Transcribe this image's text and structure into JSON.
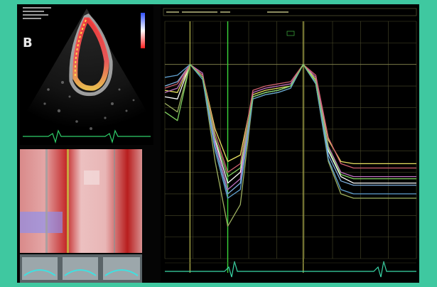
{
  "echo_panel": {
    "label": "B"
  },
  "chart_data": {
    "type": "line",
    "description_visible_axes": false,
    "gridlines": "on",
    "series_count": 8,
    "series_colors": [
      "#ffffff",
      "#e8e060",
      "#9db060",
      "#7fb0e0",
      "#c070c0",
      "#d06070",
      "#60a0d0",
      "#80d060"
    ],
    "x": [
      0,
      1,
      2,
      3,
      4,
      5,
      6,
      7,
      8,
      9,
      10,
      11,
      12,
      13,
      14,
      15,
      16,
      17,
      18,
      19,
      20
    ],
    "series": [
      {
        "values": [
          -1.5,
          -1.6,
          0,
          -0.5,
          -3.5,
          -5.5,
          -5.0,
          -1.5,
          -1.3,
          -1.2,
          -1.0,
          0,
          -0.8,
          -4.0,
          -5.2,
          -5.5,
          -5.5,
          -5.5,
          -5.5,
          -5.5,
          -5.5
        ]
      },
      {
        "values": [
          -1.2,
          -1.3,
          0,
          -0.5,
          -3.0,
          -4.5,
          -4.2,
          -1.4,
          -1.2,
          -1.1,
          -1.0,
          0,
          -0.7,
          -3.5,
          -4.5,
          -4.6,
          -4.6,
          -4.6,
          -4.6,
          -4.6,
          -4.6
        ]
      },
      {
        "values": [
          -1.8,
          -2.2,
          0,
          -0.6,
          -4.5,
          -7.5,
          -6.5,
          -1.6,
          -1.4,
          -1.3,
          -1.1,
          0,
          -0.9,
          -4.5,
          -6.0,
          -6.2,
          -6.2,
          -6.2,
          -6.2,
          -6.2,
          -6.2
        ]
      },
      {
        "values": [
          -1.0,
          -0.8,
          0,
          -0.6,
          -3.8,
          -6.0,
          -5.5,
          -1.5,
          -1.3,
          -1.2,
          -1.0,
          0,
          -0.8,
          -4.2,
          -5.4,
          -5.6,
          -5.6,
          -5.6,
          -5.6,
          -5.6,
          -5.6
        ]
      },
      {
        "values": [
          -1.3,
          -1.1,
          0,
          -0.4,
          -3.6,
          -5.8,
          -5.3,
          -1.3,
          -1.1,
          -1.0,
          -0.9,
          0,
          -0.6,
          -3.8,
          -5.0,
          -5.2,
          -5.2,
          -5.2,
          -5.2,
          -5.2,
          -5.2
        ]
      },
      {
        "values": [
          -1.1,
          -0.9,
          0,
          -0.5,
          -3.2,
          -5.0,
          -4.6,
          -1.2,
          -1.0,
          -0.9,
          -0.8,
          0,
          -0.5,
          -3.4,
          -4.6,
          -4.8,
          -4.8,
          -4.8,
          -4.8,
          -4.8,
          -4.8
        ]
      },
      {
        "values": [
          -0.6,
          -0.5,
          0,
          -0.7,
          -4.0,
          -6.2,
          -5.8,
          -1.6,
          -1.4,
          -1.3,
          -1.1,
          0,
          -0.9,
          -4.4,
          -5.8,
          -6.0,
          -6.0,
          -6.0,
          -6.0,
          -6.0,
          -6.0
        ]
      },
      {
        "values": [
          -2.2,
          -2.6,
          0,
          -0.6,
          -3.4,
          -5.2,
          -4.8,
          -1.5,
          -1.3,
          -1.2,
          -1.0,
          0,
          -0.8,
          -3.9,
          -5.1,
          -5.3,
          -5.3,
          -5.3,
          -5.3,
          -5.3,
          -5.3
        ]
      }
    ]
  }
}
